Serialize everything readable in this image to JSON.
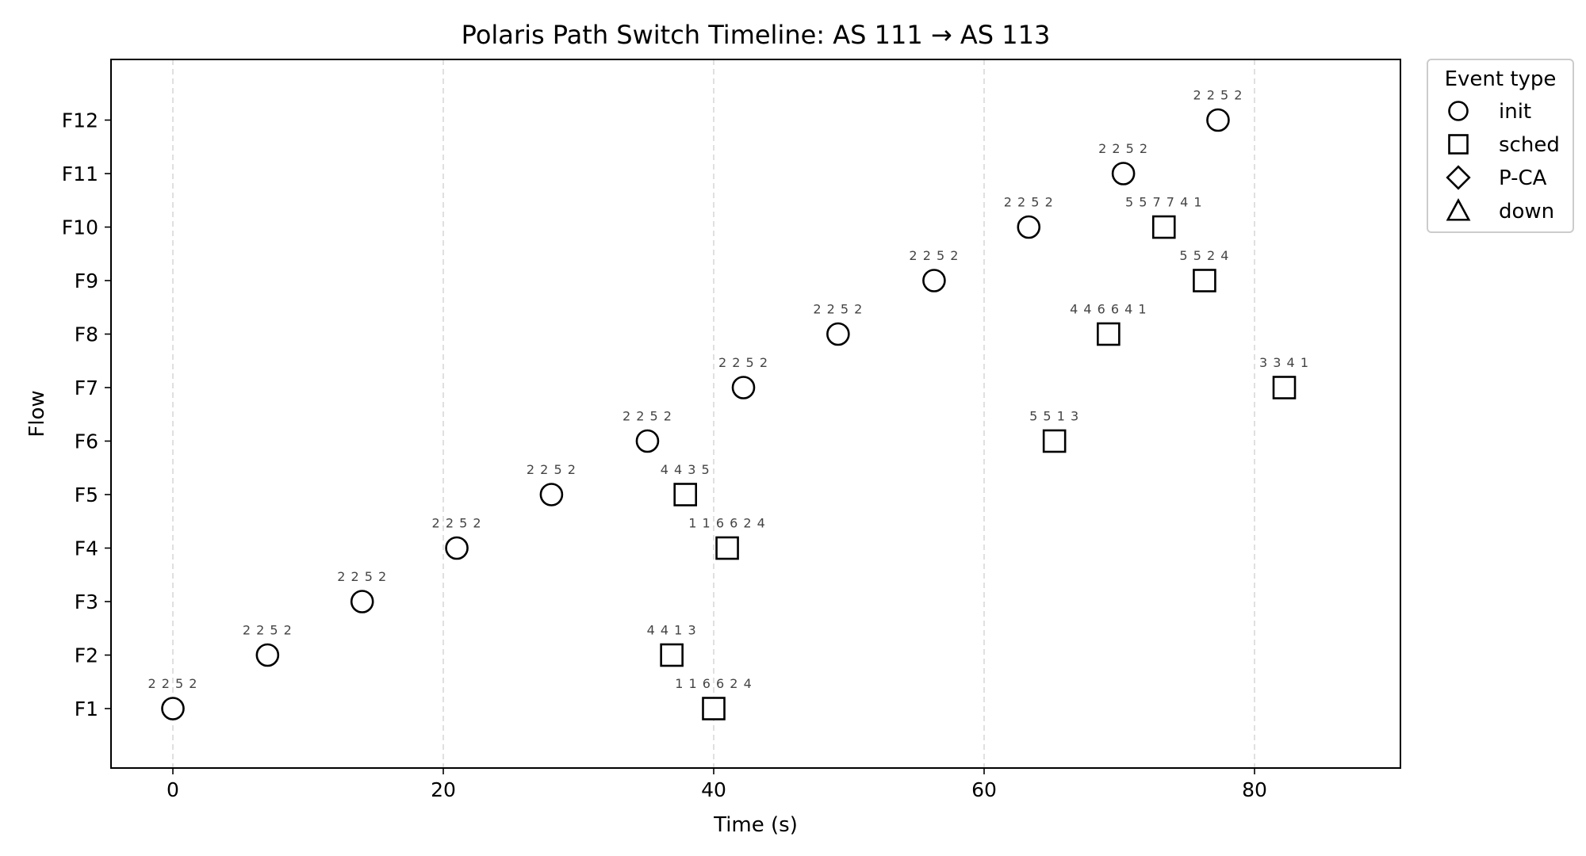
{
  "chart_data": {
    "type": "scatter",
    "title": "Polaris Path Switch Timeline: AS 111 → AS 113",
    "xlabel": "Time (s)",
    "ylabel": "Flow",
    "xlim": [
      -4.5,
      90.5
    ],
    "xticks": [
      0,
      20,
      40,
      60,
      80
    ],
    "grid": "vertical dashed",
    "categories": [
      "F1",
      "F2",
      "F3",
      "F4",
      "F5",
      "F6",
      "F7",
      "F8",
      "F9",
      "F10",
      "F11",
      "F12"
    ],
    "legend": {
      "title": "Event type",
      "placement": "outside-top-right",
      "entries": [
        {
          "label": "init",
          "marker": "circle"
        },
        {
          "label": "sched",
          "marker": "square"
        },
        {
          "label": "P-CA",
          "marker": "diamond"
        },
        {
          "label": "down",
          "marker": "triangle"
        }
      ]
    },
    "points": [
      {
        "flow": "F1",
        "t": 0.0,
        "event": "init",
        "label": "2 2 5 2"
      },
      {
        "flow": "F2",
        "t": 7.0,
        "event": "init",
        "label": "2 2 5 2"
      },
      {
        "flow": "F3",
        "t": 14.0,
        "event": "init",
        "label": "2 2 5 2"
      },
      {
        "flow": "F4",
        "t": 21.0,
        "event": "init",
        "label": "2 2 5 2"
      },
      {
        "flow": "F5",
        "t": 28.0,
        "event": "init",
        "label": "2 2 5 2"
      },
      {
        "flow": "F6",
        "t": 35.1,
        "event": "init",
        "label": "2 2 5 2"
      },
      {
        "flow": "F7",
        "t": 42.2,
        "event": "init",
        "label": "2 2 5 2"
      },
      {
        "flow": "F8",
        "t": 49.2,
        "event": "init",
        "label": "2 2 5 2"
      },
      {
        "flow": "F9",
        "t": 56.3,
        "event": "init",
        "label": "2 2 5 2"
      },
      {
        "flow": "F10",
        "t": 63.3,
        "event": "init",
        "label": "2 2 5 2"
      },
      {
        "flow": "F11",
        "t": 70.3,
        "event": "init",
        "label": "2 2 5 2"
      },
      {
        "flow": "F12",
        "t": 77.3,
        "event": "init",
        "label": "2 2 5 2"
      },
      {
        "flow": "F1",
        "t": 40.0,
        "event": "sched",
        "label": "1 1 6 6 2 4"
      },
      {
        "flow": "F2",
        "t": 36.9,
        "event": "sched",
        "label": "4 4 1 3"
      },
      {
        "flow": "F4",
        "t": 41.0,
        "event": "sched",
        "label": "1 1 6 6 2 4"
      },
      {
        "flow": "F5",
        "t": 37.9,
        "event": "sched",
        "label": "4 4 3 5"
      },
      {
        "flow": "F6",
        "t": 65.2,
        "event": "sched",
        "label": "5 5 1 3"
      },
      {
        "flow": "F7",
        "t": 82.2,
        "event": "sched",
        "label": "3 3 4 1"
      },
      {
        "flow": "F8",
        "t": 69.2,
        "event": "sched",
        "label": "4 4 6 6 4 1"
      },
      {
        "flow": "F9",
        "t": 76.3,
        "event": "sched",
        "label": "5 5 2 4"
      },
      {
        "flow": "F10",
        "t": 73.3,
        "event": "sched",
        "label": "5 5 7 7 4 1"
      }
    ]
  }
}
